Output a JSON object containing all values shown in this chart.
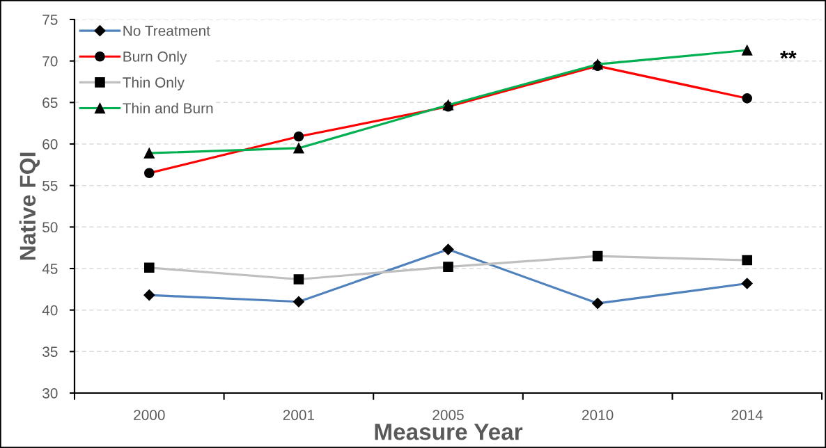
{
  "chart_data": {
    "type": "line",
    "xlabel": "Measure Year",
    "ylabel": "Native FQI",
    "categories": [
      "2000",
      "2001",
      "2005",
      "2010",
      "2014"
    ],
    "series": [
      {
        "name": "No Treatment",
        "color": "#4f81bd",
        "marker": "diamond",
        "values": [
          41.8,
          41.0,
          47.3,
          40.8,
          43.2
        ]
      },
      {
        "name": "Burn Only",
        "color": "#ff0000",
        "marker": "circle",
        "values": [
          56.5,
          60.9,
          64.5,
          69.4,
          65.5
        ]
      },
      {
        "name": "Thin Only",
        "color": "#bfbfbf",
        "marker": "square",
        "values": [
          45.1,
          43.7,
          45.2,
          46.5,
          46.0
        ]
      },
      {
        "name": "Thin and Burn",
        "color": "#00b050",
        "marker": "triangle",
        "values": [
          58.9,
          59.5,
          64.7,
          69.6,
          71.3
        ]
      }
    ],
    "ylim": [
      30,
      75
    ],
    "yticks": [
      30,
      35,
      40,
      45,
      50,
      55,
      60,
      65,
      70,
      75
    ],
    "grid": "y",
    "legend": "top left",
    "line_style": "solid",
    "annotations": [
      {
        "text": "**",
        "x": "2014",
        "y": 71.3
      }
    ]
  }
}
